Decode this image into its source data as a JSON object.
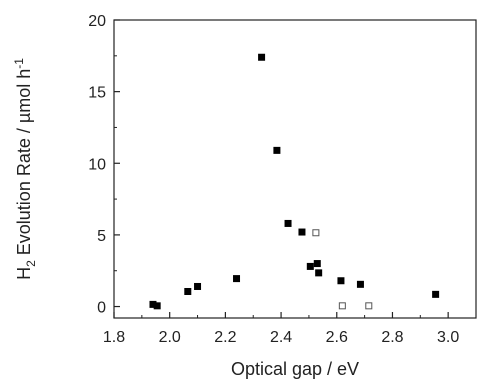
{
  "chart_data": {
    "type": "scatter",
    "title": "",
    "xlabel": "Optical gap / eV",
    "ylabel": {
      "prefix": "H",
      "subscript": "2",
      "main": " Evolution Rate / µmol h",
      "superscript": "-1"
    },
    "xlim": [
      1.8,
      3.1
    ],
    "ylim": [
      -0.8,
      20
    ],
    "x_ticks": [
      1.8,
      2.0,
      2.2,
      2.4,
      2.6,
      2.8,
      3.0
    ],
    "x_tick_labels": [
      "1.8",
      "2.0",
      "2.2",
      "2.4",
      "2.6",
      "2.8",
      "3.0"
    ],
    "y_ticks": [
      0,
      5,
      10,
      15,
      20
    ],
    "y_tick_labels": [
      "0",
      "5",
      "10",
      "15",
      "20"
    ],
    "grid": false,
    "series": [
      {
        "marker": "filled-square",
        "color": "#000000",
        "points": [
          {
            "x": 1.94,
            "y": 0.15
          },
          {
            "x": 1.955,
            "y": 0.05
          },
          {
            "x": 2.065,
            "y": 1.05
          },
          {
            "x": 2.1,
            "y": 1.4
          },
          {
            "x": 2.24,
            "y": 1.95
          },
          {
            "x": 2.33,
            "y": 17.4
          },
          {
            "x": 2.385,
            "y": 10.9
          },
          {
            "x": 2.425,
            "y": 5.8
          },
          {
            "x": 2.475,
            "y": 5.2
          },
          {
            "x": 2.505,
            "y": 2.8
          },
          {
            "x": 2.53,
            "y": 3.0
          },
          {
            "x": 2.535,
            "y": 2.35
          },
          {
            "x": 2.615,
            "y": 1.8
          },
          {
            "x": 2.685,
            "y": 1.55
          },
          {
            "x": 2.955,
            "y": 0.85
          }
        ]
      },
      {
        "marker": "open-square",
        "color": "#555555",
        "points": [
          {
            "x": 2.525,
            "y": 5.15
          },
          {
            "x": 2.62,
            "y": 0.05
          },
          {
            "x": 2.715,
            "y": 0.05
          }
        ]
      }
    ]
  }
}
